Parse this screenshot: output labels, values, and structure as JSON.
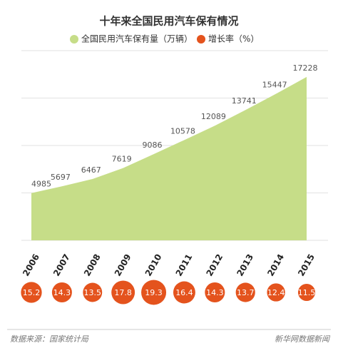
{
  "chart_data": {
    "type": "area",
    "title": "十年来全国民用汽车保有情况",
    "categories": [
      "2006",
      "2007",
      "2008",
      "2009",
      "2010",
      "2011",
      "2012",
      "2013",
      "2014",
      "2015"
    ],
    "series": [
      {
        "name": "全国民用汽车保有量（万辆）",
        "color": "#c6dd88",
        "values": [
          4985,
          5697,
          6467,
          7619,
          9086,
          10578,
          12089,
          13741,
          15447,
          17228
        ]
      },
      {
        "name": "增长率（%）",
        "color": "#e4531d",
        "values": [
          15.2,
          14.3,
          13.5,
          17.8,
          19.3,
          16.4,
          14.3,
          13.7,
          12.4,
          11.5
        ]
      }
    ],
    "ylim": [
      0,
      20000
    ],
    "yticks": [
      0,
      5000,
      10000,
      15000,
      20000
    ],
    "grid": true,
    "source": "数据来源：国家统计局",
    "credit": "新华网数据新闻"
  }
}
